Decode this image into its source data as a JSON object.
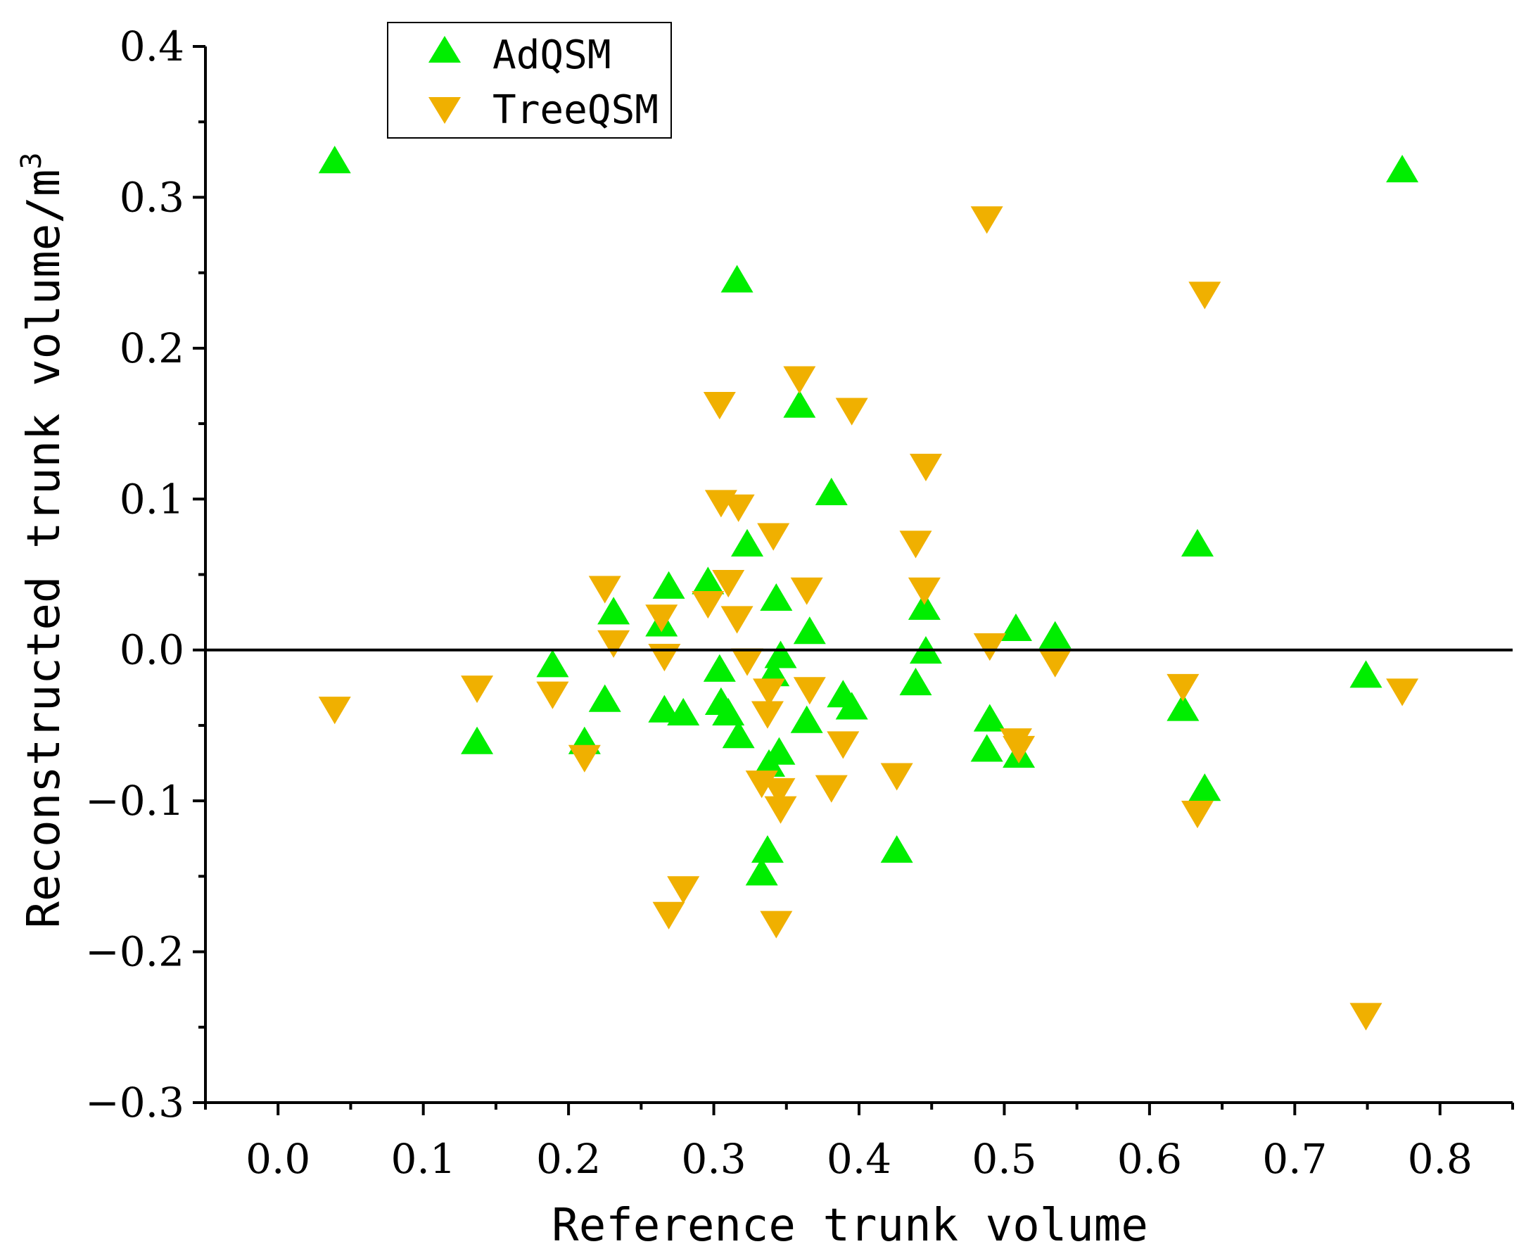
{
  "chart_data": {
    "type": "scatter",
    "title": "",
    "xlabel": "Reference trunk volume",
    "ylabel": "Reconstructed trunk volume/m",
    "ylabel_superscript": "3",
    "xlim": [
      -0.05,
      0.85
    ],
    "ylim": [
      -0.3,
      0.4
    ],
    "x_ticks": [
      0.0,
      0.1,
      0.2,
      0.3,
      0.4,
      0.5,
      0.6,
      0.7,
      0.8
    ],
    "x_tick_labels": [
      "0.0",
      "0.1",
      "0.2",
      "0.3",
      "0.4",
      "0.5",
      "0.6",
      "0.7",
      "0.8"
    ],
    "y_ticks": [
      -0.3,
      -0.2,
      -0.1,
      0.0,
      0.1,
      0.2,
      0.3,
      0.4
    ],
    "y_tick_labels": [
      "−0.3",
      "−0.2",
      "−0.1",
      "0.0",
      "0.1",
      "0.2",
      "0.3",
      "0.4"
    ],
    "reference_line_y": 0.0,
    "legend_position": "top-left",
    "series": [
      {
        "name": "AdQSM",
        "marker": "triangle-up",
        "color": "#00ee00",
        "points": [
          [
            0.039,
            0.324
          ],
          [
            0.137,
            -0.061
          ],
          [
            0.189,
            -0.01
          ],
          [
            0.211,
            -0.061
          ],
          [
            0.225,
            -0.033
          ],
          [
            0.231,
            0.025
          ],
          [
            0.264,
            0.017
          ],
          [
            0.266,
            -0.04
          ],
          [
            0.269,
            0.042
          ],
          [
            0.279,
            -0.042
          ],
          [
            0.296,
            0.045
          ],
          [
            0.304,
            -0.013
          ],
          [
            0.305,
            -0.035
          ],
          [
            0.31,
            -0.042
          ],
          [
            0.316,
            0.245
          ],
          [
            0.317,
            -0.057
          ],
          [
            0.323,
            0.07
          ],
          [
            0.333,
            -0.148
          ],
          [
            0.337,
            -0.133
          ],
          [
            0.338,
            -0.076
          ],
          [
            0.341,
            -0.016
          ],
          [
            0.343,
            0.034
          ],
          [
            0.345,
            -0.068
          ],
          [
            0.346,
            -0.004
          ],
          [
            0.359,
            0.162
          ],
          [
            0.364,
            -0.047
          ],
          [
            0.366,
            0.012
          ],
          [
            0.381,
            0.104
          ],
          [
            0.389,
            -0.03
          ],
          [
            0.395,
            -0.038
          ],
          [
            0.426,
            -0.133
          ],
          [
            0.439,
            -0.022
          ],
          [
            0.445,
            0.028
          ],
          [
            0.446,
            -0.001
          ],
          [
            0.488,
            -0.066
          ],
          [
            0.49,
            -0.046
          ],
          [
            0.508,
            0.014
          ],
          [
            0.51,
            -0.07
          ],
          [
            0.535,
            0.009
          ],
          [
            0.623,
            -0.039
          ],
          [
            0.633,
            0.07
          ],
          [
            0.638,
            -0.092
          ],
          [
            0.749,
            -0.017
          ],
          [
            0.774,
            0.318
          ]
        ]
      },
      {
        "name": "TreeQSM",
        "marker": "triangle-down",
        "color": "#f0b000",
        "points": [
          [
            0.039,
            -0.039
          ],
          [
            0.137,
            -0.025
          ],
          [
            0.189,
            -0.029
          ],
          [
            0.211,
            -0.071
          ],
          [
            0.225,
            0.041
          ],
          [
            0.231,
            0.005
          ],
          [
            0.264,
            0.022
          ],
          [
            0.266,
            -0.004
          ],
          [
            0.269,
            -0.175
          ],
          [
            0.279,
            -0.158
          ],
          [
            0.296,
            0.031
          ],
          [
            0.304,
            0.163
          ],
          [
            0.305,
            0.098
          ],
          [
            0.31,
            0.045
          ],
          [
            0.316,
            0.021
          ],
          [
            0.317,
            0.095
          ],
          [
            0.323,
            -0.007
          ],
          [
            0.333,
            -0.088
          ],
          [
            0.337,
            -0.042
          ],
          [
            0.338,
            -0.027
          ],
          [
            0.341,
            0.076
          ],
          [
            0.343,
            -0.181
          ],
          [
            0.345,
            -0.093
          ],
          [
            0.346,
            -0.105
          ],
          [
            0.359,
            0.18
          ],
          [
            0.364,
            0.04
          ],
          [
            0.366,
            -0.026
          ],
          [
            0.381,
            -0.091
          ],
          [
            0.389,
            -0.062
          ],
          [
            0.395,
            0.159
          ],
          [
            0.426,
            -0.083
          ],
          [
            0.439,
            0.071
          ],
          [
            0.445,
            0.04
          ],
          [
            0.446,
            0.122
          ],
          [
            0.488,
            0.286
          ],
          [
            0.49,
            0.003
          ],
          [
            0.508,
            -0.06
          ],
          [
            0.51,
            -0.065
          ],
          [
            0.535,
            -0.008
          ],
          [
            0.623,
            -0.024
          ],
          [
            0.633,
            -0.108
          ],
          [
            0.638,
            0.236
          ],
          [
            0.749,
            -0.242
          ],
          [
            0.774,
            -0.027
          ]
        ]
      }
    ]
  }
}
